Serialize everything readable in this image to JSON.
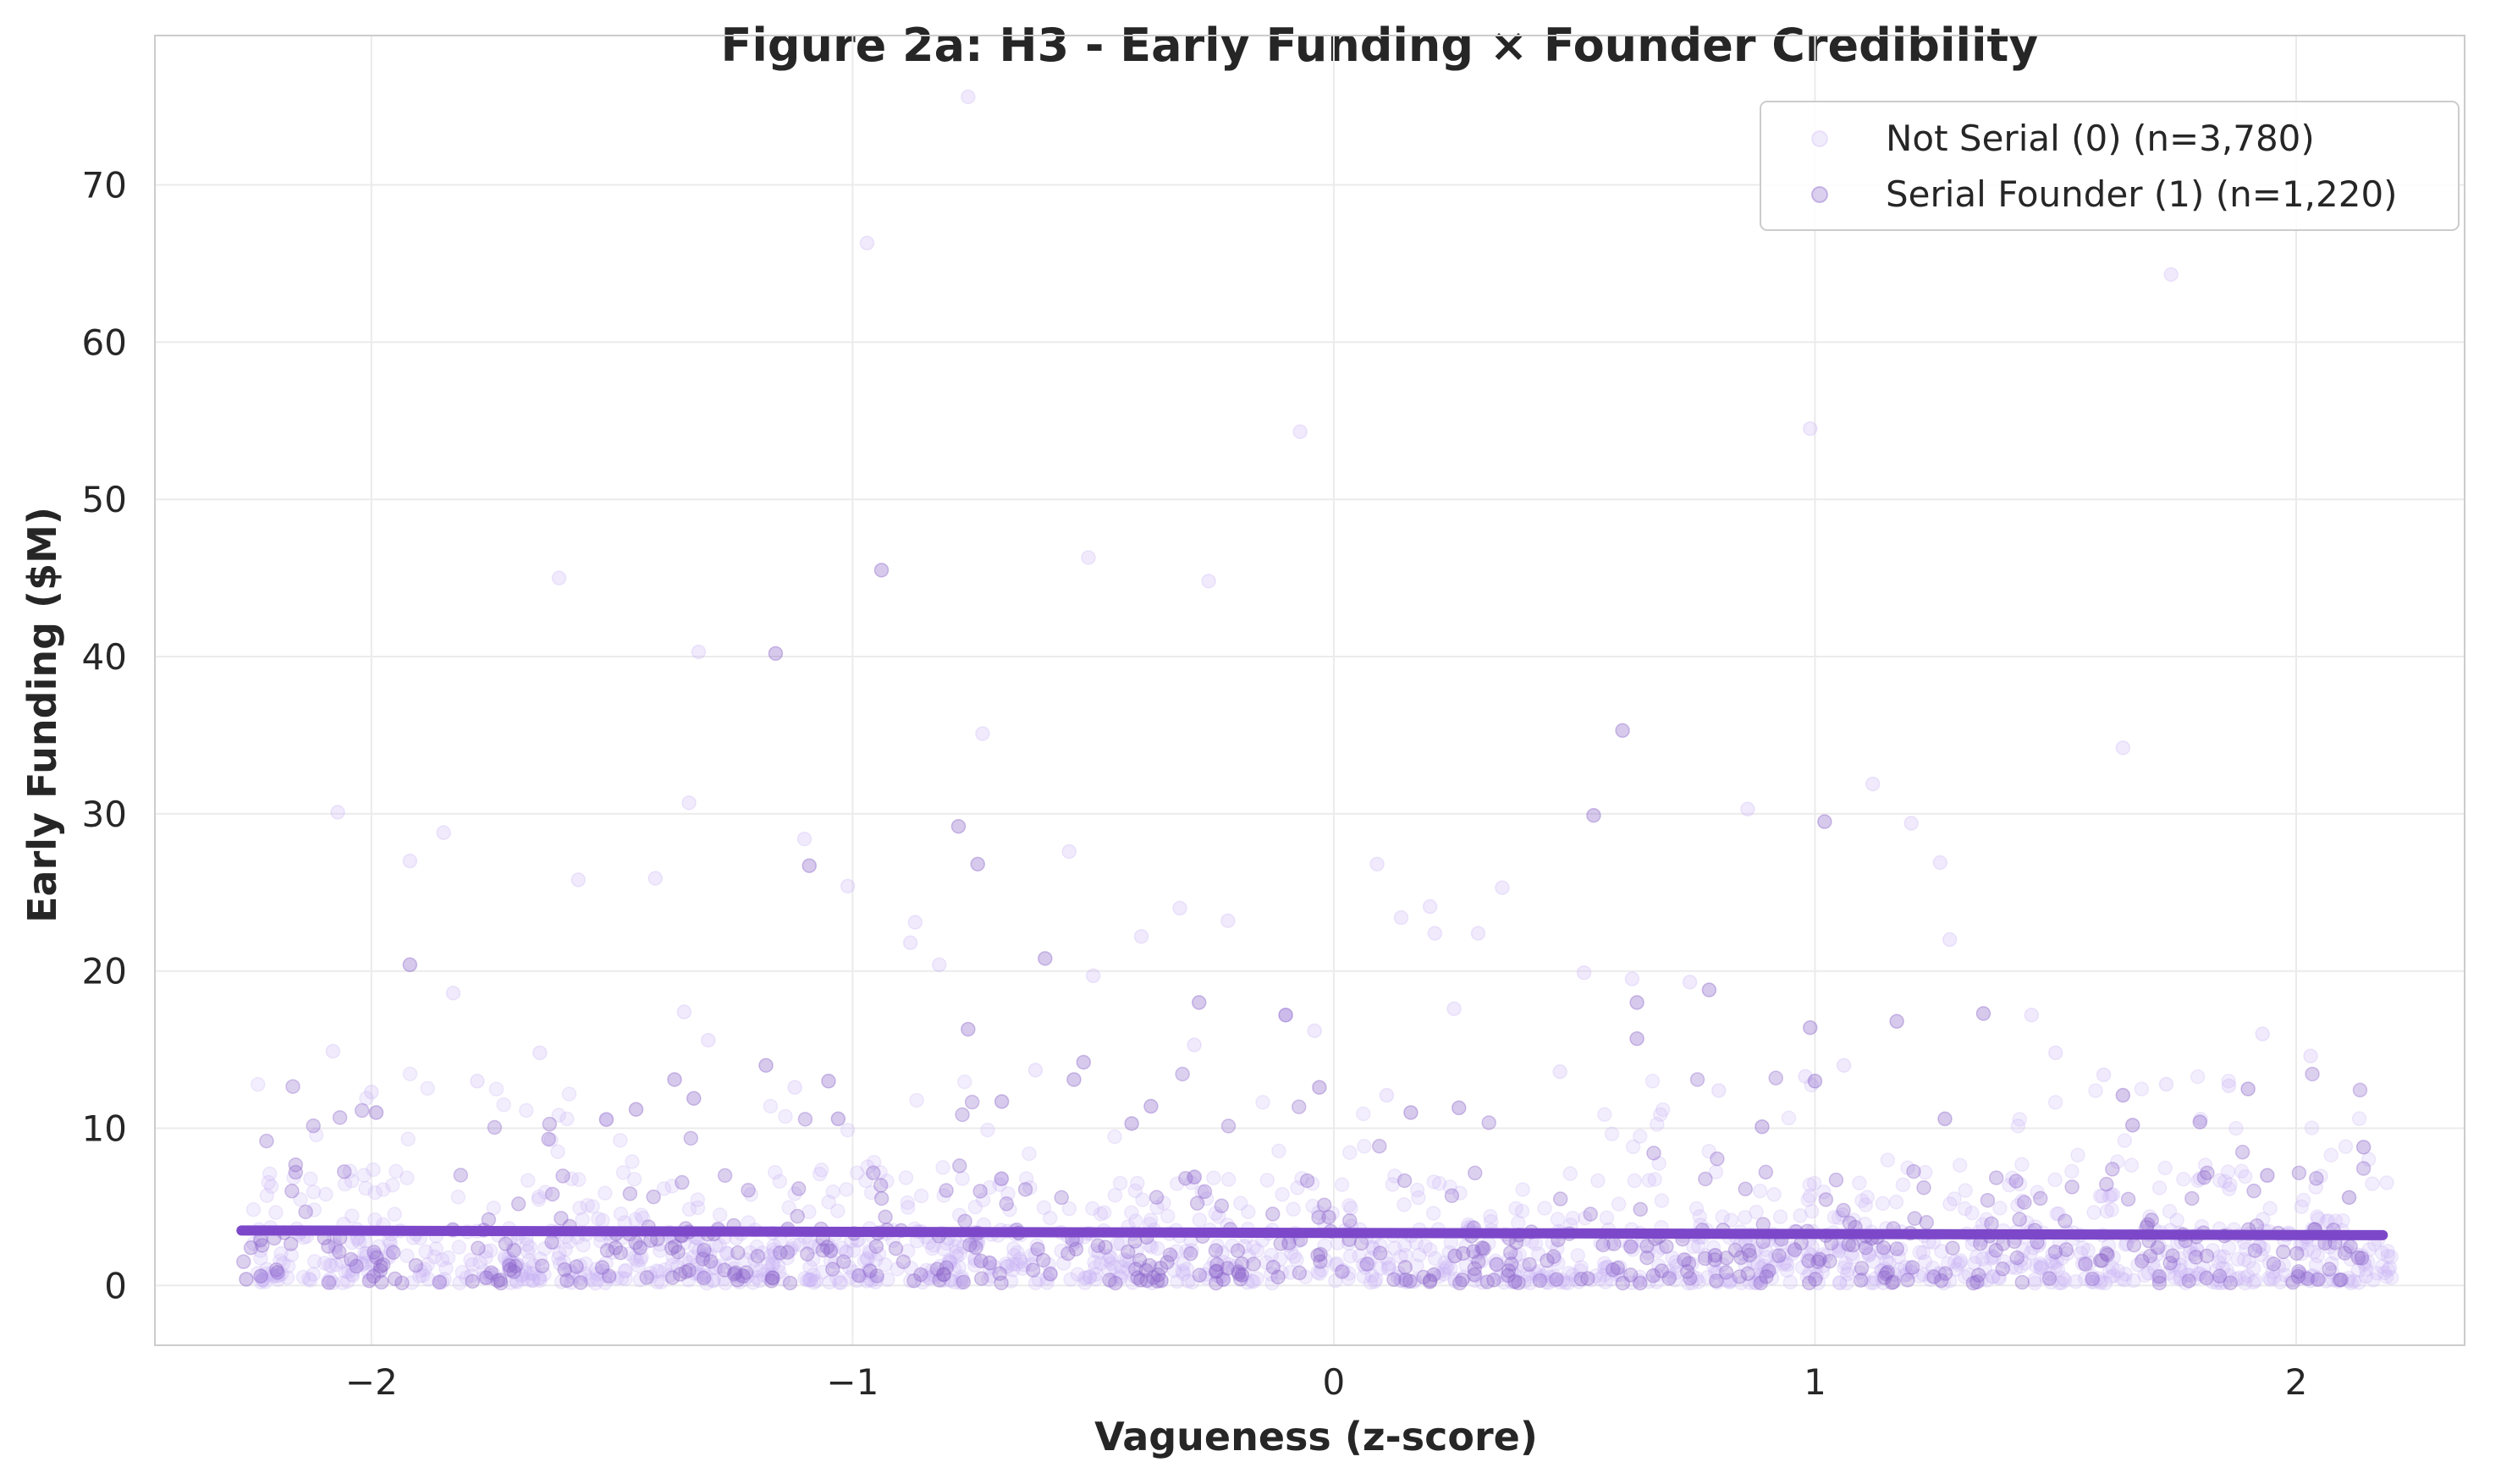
{
  "chart_data": {
    "type": "scatter",
    "title": "Figure 2a: H3 - Early Funding × Founder Credibility",
    "xlabel": "Vagueness (z-score)",
    "ylabel": "Early Funding ($M)",
    "xlim": [
      -2.45,
      2.35
    ],
    "ylim": [
      -3.8,
      79.5
    ],
    "xticks": [
      -2,
      -1,
      0,
      1,
      2
    ],
    "xtick_labels": [
      "−2",
      "−1",
      "0",
      "1",
      "2"
    ],
    "yticks": [
      0,
      10,
      20,
      30,
      40,
      50,
      60,
      70
    ],
    "ytick_labels": [
      "0",
      "10",
      "20",
      "30",
      "40",
      "50",
      "60",
      "70"
    ],
    "grid": true,
    "legend_position": "top-right",
    "series": [
      {
        "name": "Not Serial (0) (n=3,780)",
        "color": "#c9b3f5",
        "opacity": 0.2,
        "n": 3780,
        "x_range": [
          -2.25,
          2.2
        ],
        "notable_points": [
          {
            "x": -0.76,
            "y": 75.6
          },
          {
            "x": -0.97,
            "y": 66.3
          },
          {
            "x": 1.74,
            "y": 64.3
          },
          {
            "x": -0.07,
            "y": 54.3
          },
          {
            "x": 0.99,
            "y": 54.5
          },
          {
            "x": -0.51,
            "y": 46.3
          },
          {
            "x": -1.61,
            "y": 45.0
          },
          {
            "x": -0.26,
            "y": 44.8
          },
          {
            "x": -1.32,
            "y": 40.3
          },
          {
            "x": -0.73,
            "y": 35.1
          },
          {
            "x": 1.64,
            "y": 34.2
          },
          {
            "x": 1.12,
            "y": 31.9
          },
          {
            "x": -1.34,
            "y": 30.7
          },
          {
            "x": -2.07,
            "y": 30.1
          },
          {
            "x": 0.86,
            "y": 30.3
          },
          {
            "x": -1.1,
            "y": 28.4
          },
          {
            "x": -1.85,
            "y": 28.8
          },
          {
            "x": 1.2,
            "y": 29.4
          },
          {
            "x": -0.55,
            "y": 27.6
          },
          {
            "x": -1.92,
            "y": 27.0
          },
          {
            "x": 0.09,
            "y": 26.8
          },
          {
            "x": 1.26,
            "y": 26.9
          },
          {
            "x": -1.41,
            "y": 25.9
          },
          {
            "x": -1.57,
            "y": 25.8
          },
          {
            "x": -1.01,
            "y": 25.4
          },
          {
            "x": 0.35,
            "y": 25.3
          },
          {
            "x": -0.32,
            "y": 24.0
          },
          {
            "x": 0.2,
            "y": 24.1
          },
          {
            "x": 0.14,
            "y": 23.4
          },
          {
            "x": -0.87,
            "y": 23.1
          },
          {
            "x": -0.22,
            "y": 23.2
          },
          {
            "x": 0.21,
            "y": 22.4
          },
          {
            "x": -0.4,
            "y": 22.2
          },
          {
            "x": 1.28,
            "y": 22.0
          },
          {
            "x": -0.88,
            "y": 21.8
          },
          {
            "x": 0.3,
            "y": 22.4
          },
          {
            "x": -0.82,
            "y": 20.4
          },
          {
            "x": 0.52,
            "y": 19.9
          },
          {
            "x": 0.62,
            "y": 19.5
          },
          {
            "x": 0.74,
            "y": 19.3
          },
          {
            "x": -0.5,
            "y": 19.7
          },
          {
            "x": 1.45,
            "y": 17.2
          },
          {
            "x": -1.35,
            "y": 17.4
          },
          {
            "x": -0.1,
            "y": 17.2
          },
          {
            "x": 0.25,
            "y": 17.6
          },
          {
            "x": -0.04,
            "y": 16.2
          },
          {
            "x": -1.83,
            "y": 18.6
          },
          {
            "x": 1.5,
            "y": 14.8
          },
          {
            "x": -2.08,
            "y": 14.9
          },
          {
            "x": -1.65,
            "y": 14.8
          },
          {
            "x": 1.93,
            "y": 16.0
          },
          {
            "x": 2.03,
            "y": 14.6
          },
          {
            "x": -0.29,
            "y": 15.3
          },
          {
            "x": 1.06,
            "y": 14.0
          },
          {
            "x": -1.3,
            "y": 15.6
          },
          {
            "x": 0.47,
            "y": 13.6
          },
          {
            "x": 1.6,
            "y": 13.4
          },
          {
            "x": -0.62,
            "y": 13.7
          },
          {
            "x": -1.78,
            "y": 13.0
          },
          {
            "x": 0.98,
            "y": 13.3
          },
          {
            "x": 1.73,
            "y": 12.8
          },
          {
            "x": -1.12,
            "y": 12.6
          },
          {
            "x": 0.8,
            "y": 12.4
          },
          {
            "x": 1.86,
            "y": 12.7
          },
          {
            "x": -2.0,
            "y": 12.3
          },
          {
            "x": 0.11,
            "y": 12.1
          }
        ]
      },
      {
        "name": "Serial Founder (1) (n=1,220)",
        "color": "#8a63c9",
        "opacity": 0.2,
        "n": 1220,
        "x_range": [
          -2.27,
          2.14
        ],
        "notable_points": [
          {
            "x": -0.94,
            "y": 45.5
          },
          {
            "x": -1.16,
            "y": 40.2
          },
          {
            "x": 0.6,
            "y": 35.3
          },
          {
            "x": 0.54,
            "y": 29.9
          },
          {
            "x": 1.02,
            "y": 29.5
          },
          {
            "x": -0.78,
            "y": 29.2
          },
          {
            "x": -0.74,
            "y": 26.8
          },
          {
            "x": -1.09,
            "y": 26.7
          },
          {
            "x": -0.6,
            "y": 20.8
          },
          {
            "x": -1.92,
            "y": 20.4
          },
          {
            "x": 0.78,
            "y": 18.8
          },
          {
            "x": -0.28,
            "y": 18.0
          },
          {
            "x": 0.63,
            "y": 18.0
          },
          {
            "x": 1.35,
            "y": 17.3
          },
          {
            "x": -0.1,
            "y": 17.2
          },
          {
            "x": 1.17,
            "y": 16.8
          },
          {
            "x": 0.99,
            "y": 16.4
          },
          {
            "x": -0.76,
            "y": 16.3
          },
          {
            "x": 0.63,
            "y": 15.7
          },
          {
            "x": -0.52,
            "y": 14.2
          },
          {
            "x": -1.18,
            "y": 14.0
          },
          {
            "x": -0.54,
            "y": 13.1
          },
          {
            "x": -1.37,
            "y": 13.1
          },
          {
            "x": 1.0,
            "y": 13.0
          },
          {
            "x": -1.05,
            "y": 13.0
          },
          {
            "x": -0.03,
            "y": 12.6
          },
          {
            "x": 1.64,
            "y": 12.1
          },
          {
            "x": 1.9,
            "y": 12.5
          },
          {
            "x": -1.33,
            "y": 11.9
          },
          {
            "x": -0.69,
            "y": 11.7
          },
          {
            "x": -0.38,
            "y": 11.4
          },
          {
            "x": 0.26,
            "y": 11.3
          },
          {
            "x": -1.45,
            "y": 11.2
          },
          {
            "x": -1.99,
            "y": 11.0
          },
          {
            "x": 0.16,
            "y": 11.0
          },
          {
            "x": 1.27,
            "y": 10.6
          },
          {
            "x": 1.8,
            "y": 10.4
          },
          {
            "x": 1.66,
            "y": 10.2
          },
          {
            "x": -0.42,
            "y": 10.3
          },
          {
            "x": 0.89,
            "y": 10.1
          },
          {
            "x": -1.03,
            "y": 10.6
          },
          {
            "x": 2.14,
            "y": 8.8
          },
          {
            "x": 1.94,
            "y": 7.0
          },
          {
            "x": 2.11,
            "y": 5.6
          },
          {
            "x": -2.26,
            "y": 0.4
          },
          {
            "x": -2.23,
            "y": 0.6
          }
        ]
      }
    ],
    "trend_line": {
      "color": "#7c48c9",
      "x": [
        -2.27,
        2.18
      ],
      "y": [
        3.5,
        3.2
      ]
    }
  }
}
